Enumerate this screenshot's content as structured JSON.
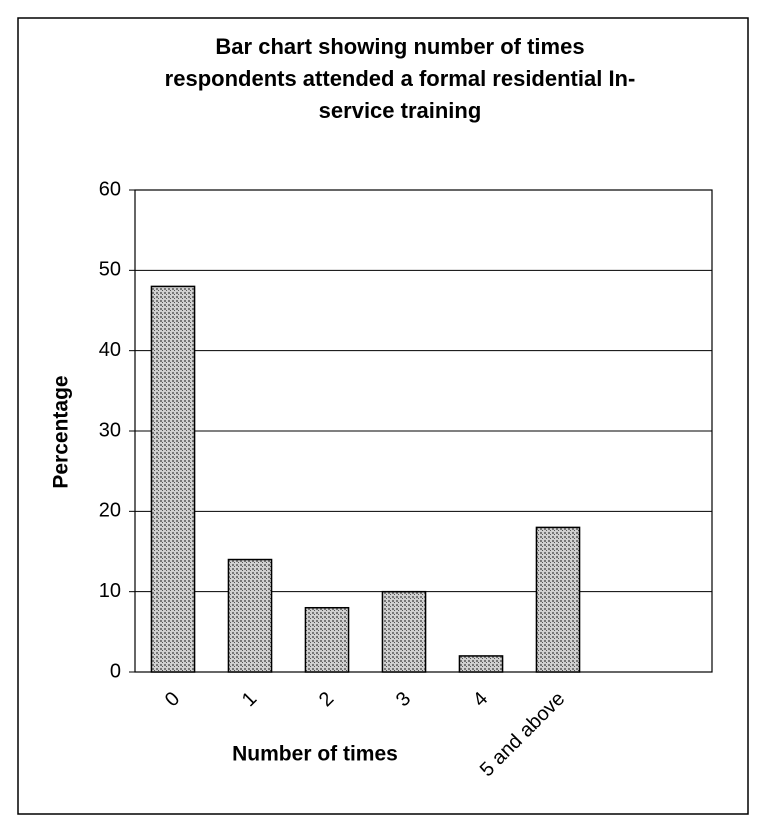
{
  "chart_data": {
    "type": "bar",
    "title": [
      "Bar chart showing number of times",
      "respondents attended a formal residential In-",
      "service training"
    ],
    "x_label": "Number of times",
    "y_label": "Percentage",
    "categories": [
      "0",
      "1",
      "2",
      "3",
      "4",
      "5 and above"
    ],
    "values": [
      48,
      14,
      8,
      10,
      2,
      18
    ],
    "color": "#8c8c8c",
    "ylim": [
      0,
      60
    ],
    "yticks": [
      0,
      10,
      20,
      30,
      40,
      50,
      60
    ],
    "grid": true
  }
}
